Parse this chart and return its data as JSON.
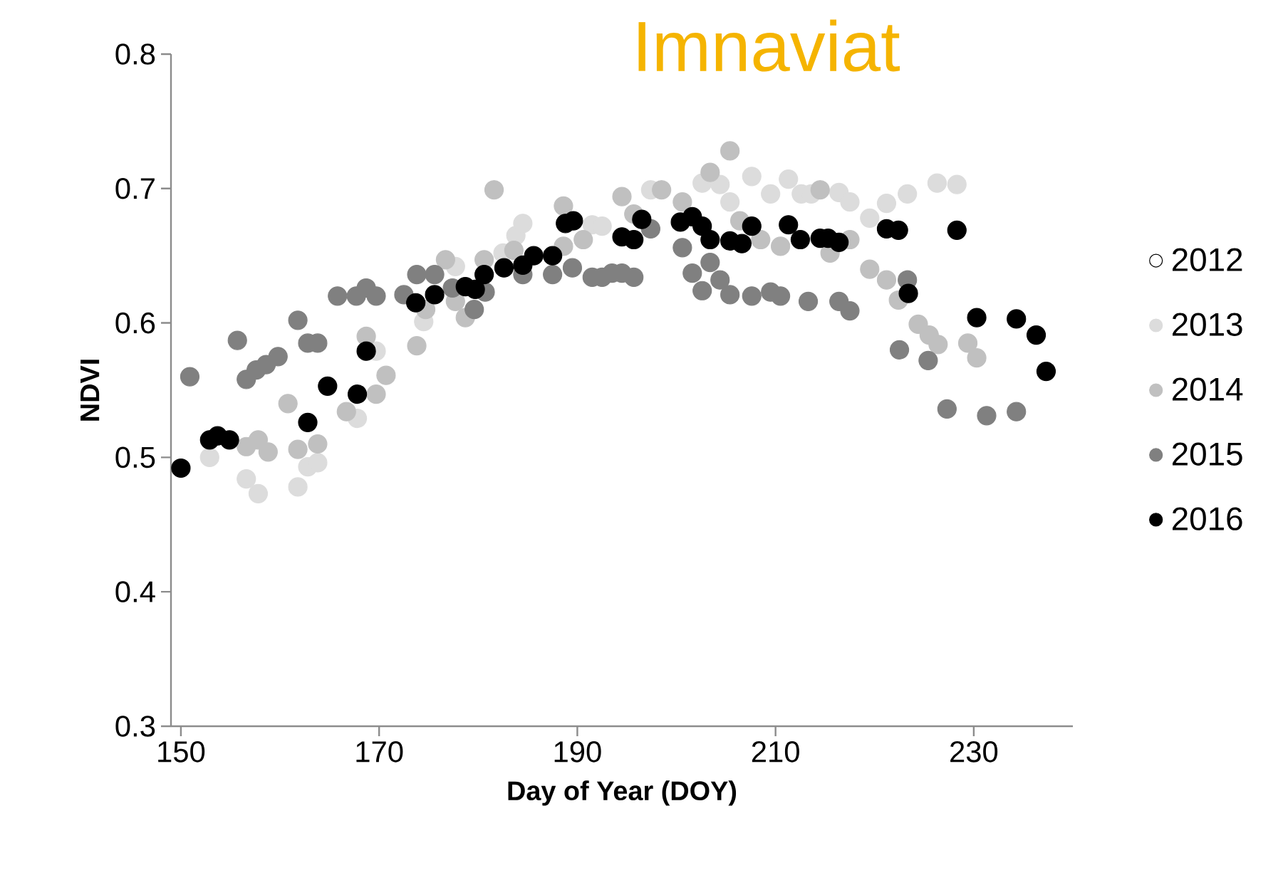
{
  "chart_data": {
    "type": "scatter",
    "title": "Imnaviat",
    "xlabel": "Day of Year (DOY)",
    "ylabel": "NDVI",
    "xlim": [
      149,
      240
    ],
    "xticks": [
      150,
      170,
      190,
      210,
      230
    ],
    "ylim": [
      0.3,
      0.8
    ],
    "yticks": [
      0.3,
      0.4,
      0.5,
      0.6,
      0.7,
      0.8
    ],
    "grid": false,
    "legend": "right",
    "series": [
      {
        "name": "2012",
        "color": "#ffffff"
      },
      {
        "name": "2013",
        "color": "#dcdcdc",
        "x": [
          152.9,
          156.6,
          157.8,
          161.8,
          162.8,
          163.8,
          167.8,
          169.7,
          174.5,
          177.7,
          182.5,
          183.8,
          184.5,
          191.5,
          192.5,
          197.4,
          202.6,
          204.4,
          205.4,
          207.6,
          209.5,
          211.3,
          212.6,
          213.6,
          216.4,
          217.5,
          219.5,
          221.2,
          223.3,
          226.3,
          228.3
        ],
        "values": [
          0.5,
          0.484,
          0.473,
          0.478,
          0.493,
          0.496,
          0.529,
          0.579,
          0.601,
          0.642,
          0.652,
          0.665,
          0.674,
          0.673,
          0.672,
          0.699,
          0.704,
          0.703,
          0.69,
          0.709,
          0.696,
          0.707,
          0.696,
          0.696,
          0.697,
          0.69,
          0.678,
          0.689,
          0.696,
          0.704,
          0.703
        ]
      },
      {
        "name": "2014",
        "color": "#c0c0c0",
        "x": [
          156.6,
          157.8,
          158.8,
          160.8,
          161.8,
          163.8,
          166.7,
          168.7,
          169.7,
          170.7,
          173.8,
          174.7,
          176.7,
          177.7,
          178.7,
          180.6,
          181.6,
          183.6,
          188.6,
          188.6,
          190.6,
          194.5,
          195.7,
          198.5,
          200.6,
          203.4,
          205.4,
          206.4,
          208.5,
          210.5,
          214.5,
          215.5,
          217.5,
          219.5,
          221.2,
          222.4,
          224.4,
          225.5,
          226.4,
          229.4,
          230.3
        ],
        "values": [
          0.508,
          0.513,
          0.504,
          0.54,
          0.506,
          0.51,
          0.534,
          0.59,
          0.547,
          0.561,
          0.583,
          0.61,
          0.647,
          0.616,
          0.604,
          0.647,
          0.699,
          0.654,
          0.657,
          0.687,
          0.662,
          0.694,
          0.681,
          0.699,
          0.69,
          0.712,
          0.728,
          0.676,
          0.662,
          0.657,
          0.699,
          0.652,
          0.662,
          0.64,
          0.632,
          0.617,
          0.599,
          0.591,
          0.584,
          0.585,
          0.574
        ]
      },
      {
        "name": "2015",
        "color": "#808080",
        "x": [
          150.9,
          155.7,
          156.6,
          157.6,
          158.6,
          159.8,
          161.8,
          162.8,
          163.8,
          165.8,
          167.7,
          168.7,
          169.7,
          172.5,
          173.8,
          175.6,
          177.4,
          179.6,
          180.7,
          184.5,
          187.5,
          189.5,
          191.5,
          192.5,
          193.5,
          194.5,
          195.7,
          197.4,
          200.6,
          201.6,
          202.6,
          203.4,
          204.4,
          205.4,
          207.6,
          209.5,
          210.5,
          213.3,
          216.4,
          217.5,
          223.3,
          222.5,
          225.4,
          227.3,
          231.3,
          234.3
        ],
        "values": [
          0.56,
          0.587,
          0.558,
          0.565,
          0.569,
          0.575,
          0.602,
          0.585,
          0.585,
          0.62,
          0.62,
          0.626,
          0.62,
          0.621,
          0.636,
          0.636,
          0.626,
          0.61,
          0.623,
          0.636,
          0.636,
          0.641,
          0.634,
          0.634,
          0.637,
          0.637,
          0.634,
          0.67,
          0.656,
          0.637,
          0.624,
          0.645,
          0.632,
          0.621,
          0.62,
          0.623,
          0.62,
          0.616,
          0.616,
          0.609,
          0.632,
          0.58,
          0.572,
          0.536,
          0.531,
          0.534
        ]
      },
      {
        "name": "2016",
        "color": "#000000",
        "x": [
          150.0,
          152.9,
          153.7,
          154.9,
          162.8,
          164.8,
          167.8,
          168.7,
          173.7,
          175.6,
          178.7,
          179.7,
          180.6,
          182.6,
          184.5,
          185.6,
          187.5,
          188.8,
          189.6,
          194.5,
          195.7,
          196.5,
          200.4,
          201.6,
          202.6,
          203.4,
          205.4,
          206.6,
          207.6,
          211.3,
          212.5,
          214.5,
          215.3,
          216.4,
          221.2,
          222.4,
          228.3,
          223.4,
          230.3,
          234.3,
          236.3,
          237.3
        ],
        "values": [
          0.492,
          0.513,
          0.516,
          0.513,
          0.526,
          0.553,
          0.547,
          0.579,
          0.615,
          0.621,
          0.627,
          0.625,
          0.636,
          0.641,
          0.643,
          0.65,
          0.65,
          0.674,
          0.676,
          0.664,
          0.662,
          0.677,
          0.675,
          0.679,
          0.672,
          0.662,
          0.661,
          0.659,
          0.672,
          0.673,
          0.662,
          0.663,
          0.663,
          0.66,
          0.67,
          0.669,
          0.669,
          0.622,
          0.604,
          0.603,
          0.591,
          0.564
        ]
      }
    ]
  }
}
